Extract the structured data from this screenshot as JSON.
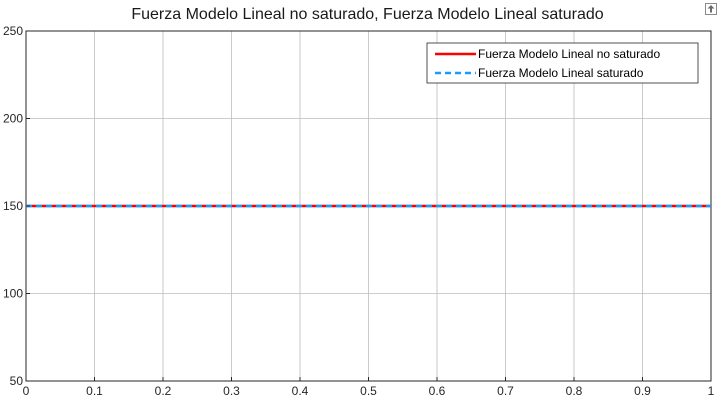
{
  "chart_data": {
    "type": "line",
    "title": "Fuerza Modelo Lineal no saturado, Fuerza Modelo Lineal saturado",
    "xlabel": "",
    "ylabel": "",
    "xlim": [
      0,
      1
    ],
    "ylim": [
      50,
      250
    ],
    "grid": true,
    "legend_position": "top-right",
    "x_ticks": [
      "0",
      "0.1",
      "0.2",
      "0.3",
      "0.4",
      "0.5",
      "0.6",
      "0.7",
      "0.8",
      "0.9",
      "1"
    ],
    "y_ticks": [
      "50",
      "100",
      "150",
      "200",
      "250"
    ],
    "x_tick_values": [
      0,
      0.1,
      0.2,
      0.3,
      0.4,
      0.5,
      0.6,
      0.7,
      0.8,
      0.9,
      1
    ],
    "y_tick_values": [
      50,
      100,
      150,
      200,
      250
    ],
    "series": [
      {
        "name": "Fuerza Modelo Lineal no saturado",
        "color": "#ff0000",
        "style": "solid",
        "x": [
          0,
          1
        ],
        "y": [
          150,
          150
        ]
      },
      {
        "name": "Fuerza Modelo Lineal saturado",
        "color": "#1a9cff",
        "style": "dashed",
        "x": [
          0,
          1
        ],
        "y": [
          150,
          150
        ]
      }
    ]
  },
  "icons": {
    "corner": "restore-axes-icon"
  }
}
